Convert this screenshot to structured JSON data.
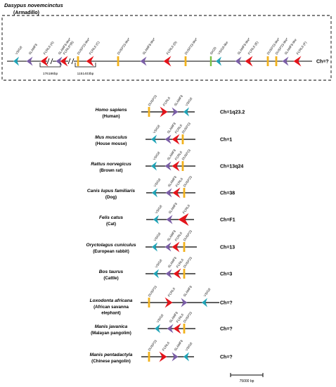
{
  "armadillo": {
    "name": "Dasypus novemcinctus",
    "common": "(Armadillo)",
    "chromosome": "Ch=?",
    "genes": [
      {
        "label": "VSIG8",
        "type": "VSIG8",
        "dir": "left"
      },
      {
        "label": "SLAMF8",
        "type": "SLAMF8",
        "dir": "left"
      },
      {
        "label": "FCRL6 (A)",
        "type": "FCRL6",
        "dir": "left"
      },
      {
        "label": "SLAMF8-like*",
        "type": "SLAMF8",
        "dir": "left"
      },
      {
        "label": "FCRL6*(B)",
        "type": "FCRL6",
        "dir": "left"
      },
      {
        "label": "DUSP23-like*",
        "type": "DUSP23",
        "dir": "left"
      },
      {
        "label": "FCRL6 (C)",
        "type": "FCRL6",
        "dir": "left"
      },
      {
        "label": "DUSP23-like*",
        "type": "DUSP23",
        "dir": "left"
      },
      {
        "label": "SLAMF8-like*",
        "type": "SLAMF8",
        "dir": "left"
      },
      {
        "label": "FCRL6 (D)",
        "type": "FCRL6",
        "dir": "left"
      },
      {
        "label": "DUSP23-like*",
        "type": "DUSP23",
        "dir": "left"
      },
      {
        "label": "SH2D",
        "type": "SH2D",
        "dir": "left"
      },
      {
        "label": "VSIG8-like",
        "type": "VSIG8",
        "dir": "left"
      },
      {
        "label": "SLAMF8-like*",
        "type": "SLAMF8",
        "dir": "left"
      },
      {
        "label": "FCRL6 (E)",
        "type": "FCRL6",
        "dir": "left"
      },
      {
        "label": "DUSP23-like*",
        "type": "DUSP23",
        "dir": "left"
      },
      {
        "label": "DUSP23-like*",
        "type": "DUSP23",
        "dir": "left"
      },
      {
        "label": "SLAMF8-like",
        "type": "SLAMF8",
        "dir": "left"
      },
      {
        "label": "FCRL6 (F)",
        "type": "FCRL6",
        "dir": "left"
      }
    ],
    "gaps": [
      "176186bp",
      "1151403bp"
    ]
  },
  "species": [
    {
      "name": "Homo sapiens",
      "common": [
        "(Human)"
      ],
      "chromosome": "Ch=1q23.2",
      "genes": [
        {
          "label": "DUSP23",
          "type": "DUSP23",
          "dir": "left"
        },
        {
          "label": "FCRL6",
          "type": "FCRL6",
          "dir": "right"
        },
        {
          "label": "SLAMF8",
          "type": "SLAMF8",
          "dir": "right"
        },
        {
          "label": "VSIG8",
          "type": "VSIG8",
          "dir": "left"
        }
      ]
    },
    {
      "name": "Mus musculus",
      "common": [
        "(House mouse)"
      ],
      "chromosome": "Ch=1",
      "genes": [
        {
          "label": "VSIG8",
          "type": "VSIG8",
          "dir": "left"
        },
        {
          "label": "SLAMF8",
          "type": "SLAMF8",
          "dir": "left"
        },
        {
          "label": "FCRL6",
          "type": "FCRL6",
          "dir": "left"
        },
        {
          "label": "DUSP23",
          "type": "DUSP23",
          "dir": "right"
        }
      ]
    },
    {
      "name": "Rattus norvegicus",
      "common": [
        "(Brown rat)"
      ],
      "chromosome": "Ch=13q24",
      "genes": [
        {
          "label": "VSIG8",
          "type": "VSIG8",
          "dir": "left"
        },
        {
          "label": "SLAMF8",
          "type": "SLAMF8",
          "dir": "left"
        },
        {
          "label": "FCRL6",
          "type": "FCRL6",
          "dir": "left"
        },
        {
          "label": "DUSP23",
          "type": "DUSP23",
          "dir": "right"
        }
      ]
    },
    {
      "name": "Canis lupus familiaris",
      "common": [
        "(Dog)"
      ],
      "chromosome": "Ch=38",
      "genes": [
        {
          "label": "VSIG8",
          "type": "VSIG8",
          "dir": "left"
        },
        {
          "label": "SLAMF8",
          "type": "SLAMF8",
          "dir": "left"
        },
        {
          "label": "FCRL6",
          "type": "FCRL6",
          "dir": "left"
        },
        {
          "label": "DUSP23",
          "type": "DUSP23",
          "dir": "right"
        }
      ]
    },
    {
      "name": "Felis catus",
      "common": [
        "(Cat)"
      ],
      "chromosome": "Ch=F1",
      "genes": [
        {
          "label": "VSIG8",
          "type": "VSIG8",
          "dir": "left"
        },
        {
          "label": "SLAMF8",
          "type": "SLAMF8",
          "dir": "left"
        },
        {
          "label": "FCRL6",
          "type": "FCRL6",
          "dir": "left",
          "big": true
        }
      ]
    },
    {
      "name": "Oryctolagus cuniculus",
      "common": [
        "(European rabbit)"
      ],
      "chromosome": "Ch=13",
      "genes": [
        {
          "label": "VSIG8",
          "type": "VSIG8",
          "dir": "left"
        },
        {
          "label": "SLAMF8",
          "type": "SLAMF8",
          "dir": "left"
        },
        {
          "label": "FCRL6",
          "type": "FCRL6",
          "dir": "left"
        },
        {
          "label": "DUSP23",
          "type": "DUSP23",
          "dir": "right"
        }
      ]
    },
    {
      "name": "Bos taurus",
      "common": [
        "(Cattle)"
      ],
      "chromosome": "Ch=3",
      "genes": [
        {
          "label": "VSIG8",
          "type": "VSIG8",
          "dir": "left"
        },
        {
          "label": "SLAMF8",
          "type": "SLAMF8",
          "dir": "left"
        },
        {
          "label": "FCRL6",
          "type": "FCRL6",
          "dir": "left"
        },
        {
          "label": "DUSP23",
          "type": "DUSP23",
          "dir": "right"
        }
      ]
    },
    {
      "name": "Loxodonta africana",
      "common": [
        "(African savanna",
        "elephant)"
      ],
      "chromosome": "Ch=?",
      "genes": [
        {
          "label": "DUSP23",
          "type": "DUSP23",
          "dir": "left"
        },
        {
          "label": "FCRL6",
          "type": "FCRL6",
          "dir": "right"
        },
        {
          "label": "SLAMF8",
          "type": "SLAMF8",
          "dir": "right"
        },
        {
          "label": "VSIG8",
          "type": "VSIG8",
          "dir": "left"
        }
      ]
    },
    {
      "name": "Manis javanica",
      "common": [
        "(Malayan pangolim)"
      ],
      "chromosome": "Ch=?",
      "genes": [
        {
          "label": "VSIG8",
          "type": "VSIG8",
          "dir": "left"
        },
        {
          "label": "SLAMF8",
          "type": "SLAMF8",
          "dir": "left"
        },
        {
          "label": "FCRL6",
          "type": "FCRL6",
          "dir": "left"
        },
        {
          "label": "DUSP23",
          "type": "DUSP23",
          "dir": "right"
        }
      ]
    },
    {
      "name": "Manis pentadactyla",
      "common": [
        "(Chinese pangolin)"
      ],
      "chromosome": "Ch=?",
      "genes": [
        {
          "label": "DUSP23",
          "type": "DUSP23",
          "dir": "left"
        },
        {
          "label": "FCRL6",
          "type": "FCRL6",
          "dir": "right"
        },
        {
          "label": "SLAMF8",
          "type": "SLAMF8",
          "dir": "right"
        },
        {
          "label": "VSIG8",
          "type": "VSIG8",
          "dir": "left"
        }
      ]
    }
  ],
  "scale_bar": {
    "label": "75000 bp"
  },
  "colors": {
    "VSIG8": "#1fa3b6",
    "SLAMF8": "#7b5ea7",
    "FCRL6": "#e3141b",
    "DUSP23": "#f2b21c",
    "SH2D": "#7bc043",
    "gene_line": "#000000",
    "label": "#222222"
  }
}
